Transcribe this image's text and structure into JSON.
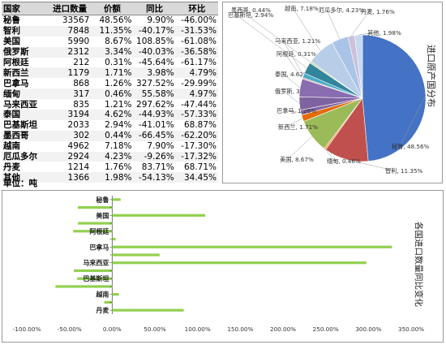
{
  "table": {
    "headers": [
      "国家",
      "进口数量",
      "价额",
      "同比",
      "环比"
    ],
    "rows": [
      [
        "秘鲁",
        "33567",
        "48.56%",
        "9.90%",
        "-46.00%"
      ],
      [
        "智利",
        "7848",
        "11.35%",
        "-40.17%",
        "-31.53%"
      ],
      [
        "美国",
        "5990",
        "8.67%",
        "108.85%",
        "-61.08%"
      ],
      [
        "俄罗斯",
        "2312",
        "3.34%",
        "-40.03%",
        "-36.58%"
      ],
      [
        "阿根廷",
        "212",
        "0.31%",
        "-45.64%",
        "-61.17%"
      ],
      [
        "新西兰",
        "1179",
        "1.71%",
        "3.98%",
        "4.79%"
      ],
      [
        "巴拿马",
        "868",
        "1.26%",
        "327.52%",
        "-29.99%"
      ],
      [
        "缅甸",
        "317",
        "0.46%",
        "55.58%",
        "4.97%"
      ],
      [
        "马来西亚",
        "835",
        "1.21%",
        "297.62%",
        "-47.44%"
      ],
      [
        "泰国",
        "3194",
        "4.62%",
        "-44.93%",
        "-57.33%"
      ],
      [
        "巴基斯坦",
        "2033",
        "2.94%",
        "-41.01%",
        "68.87%"
      ],
      [
        "墨西哥",
        "302",
        "0.44%",
        "-66.45%",
        "-62.20%"
      ],
      [
        "越南",
        "4962",
        "7.18%",
        "7.90%",
        "-17.30%"
      ],
      [
        "厄瓜多尔",
        "2924",
        "4.23%",
        "-9.26%",
        "-17.32%"
      ],
      [
        "丹麦",
        "1214",
        "1.76%",
        "83.71%",
        "68.71%"
      ],
      [
        "其他",
        "1366",
        "1.98%",
        "-54.13%",
        "34.45%"
      ]
    ]
  },
  "unit_label": "单位：吨",
  "chart_data": [
    {
      "type": "pie",
      "title": "进口原产国分布",
      "slices": [
        {
          "name": "秘鲁",
          "value": 48.56,
          "label": "秘鲁, 48.56%",
          "color": "#4472c4"
        },
        {
          "name": "智利",
          "value": 11.35,
          "label": "智利, 11.35%",
          "color": "#c0504d"
        },
        {
          "name": "缅甸",
          "value": 0.46,
          "label": "缅甸, 0.46%",
          "color": "#f79646"
        },
        {
          "name": "美国",
          "value": 8.67,
          "label": "美国, 8.67%",
          "color": "#9bbb59"
        },
        {
          "name": "新西兰",
          "value": 1.71,
          "label": "新西兰, 1.71%",
          "color": "#e46c0a"
        },
        {
          "name": "巴拿马",
          "value": 1.26,
          "label": "巴拿马, 1.26%",
          "color": "#8064a2"
        },
        {
          "name": "俄罗斯",
          "value": 3.34,
          "label": "俄罗斯, 3.34%",
          "color": "#7f63a0"
        },
        {
          "name": "泰国",
          "value": 4.62,
          "label": "泰国, 4.62%",
          "color": "#8a6db0"
        },
        {
          "name": "阿根廷",
          "value": 0.31,
          "label": "阿根廷, 0.31%",
          "color": "#d99694"
        },
        {
          "name": "马来西亚",
          "value": 1.21,
          "label": "马来西亚, 1.21%",
          "color": "#4bacc6"
        },
        {
          "name": "巴基斯坦",
          "value": 2.94,
          "label": "巴基斯坦, 2.94%",
          "color": "#31859c"
        },
        {
          "name": "墨西哥",
          "value": 0.44,
          "label": "墨西哥, 0.44%",
          "color": "#c3d69b"
        },
        {
          "name": "越南",
          "value": 7.18,
          "label": "越南, 7.18%",
          "color": "#b7cde8"
        },
        {
          "name": "厄瓜多尔",
          "value": 4.23,
          "label": "厄瓜多尔, 4.23%",
          "color": "#a9c4e6"
        },
        {
          "name": "丹麦",
          "value": 1.76,
          "label": "丹麦, 1.76%",
          "color": "#ccc1da"
        },
        {
          "name": "其他",
          "value": 1.98,
          "label": "其他, 1.98%",
          "color": "#c6d9f1"
        }
      ]
    },
    {
      "type": "bar",
      "orientation": "horizontal",
      "title": "各国进口数量同比变化",
      "categories": [
        "丹麦",
        "厄瓜多尔",
        "越南",
        "墨西哥",
        "巴基斯坦",
        "泰国",
        "马来西亚",
        "缅甸",
        "巴拿马",
        "新西兰",
        "阿根廷",
        "俄罗斯",
        "美国",
        "智利",
        "秘鲁"
      ],
      "visible_tick_labels": [
        "丹麦",
        "越南",
        "巴基斯坦",
        "马来西亚",
        "巴拿马",
        "阿根廷",
        "美国",
        "秘鲁"
      ],
      "values": [
        83.71,
        -9.26,
        7.9,
        -66.45,
        -41.01,
        -44.93,
        297.62,
        55.58,
        327.52,
        3.98,
        -45.64,
        -40.03,
        108.85,
        -40.17,
        9.9
      ],
      "xlim": [
        -100,
        350
      ],
      "xticks": [
        "-100.00%",
        "-50.00%",
        "0.00%",
        "50.00%",
        "100.00%",
        "150.00%",
        "200.00%",
        "250.00%",
        "300.00%",
        "350.00%"
      ],
      "bar_color": "#92d050"
    }
  ]
}
